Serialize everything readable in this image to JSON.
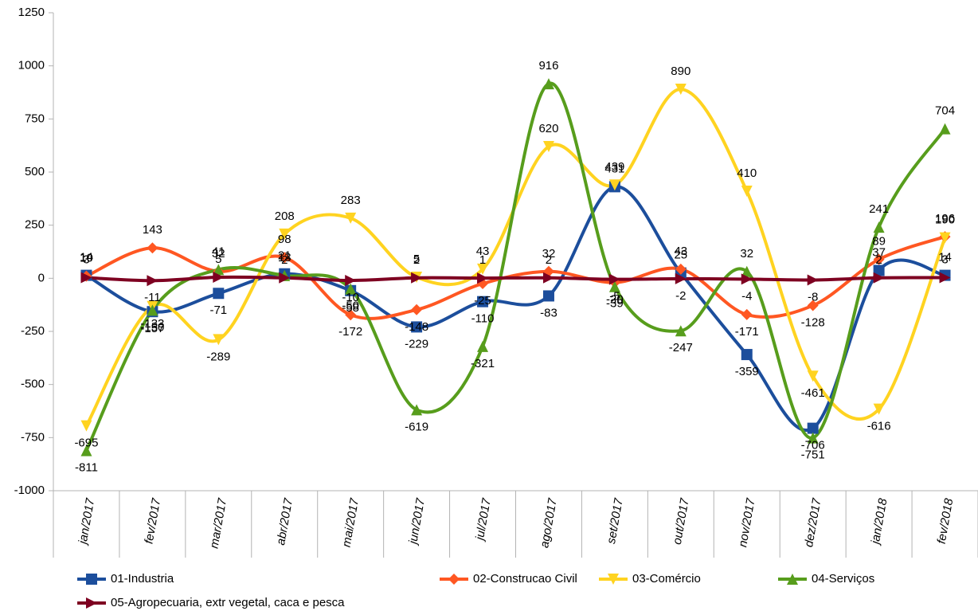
{
  "chart_data": {
    "type": "line",
    "smooth": true,
    "grid": false,
    "legend": "bottom",
    "categories": [
      "jan/2017",
      "fev/2017",
      "mar/2017",
      "abr/2017",
      "mai/2017",
      "jun/2017",
      "jul/2017",
      "ago/2017",
      "set/2017",
      "out/2017",
      "nov/2017",
      "dez/2017",
      "jan/2018",
      "fev/2018"
    ],
    "series": [
      {
        "name": "01-Industria",
        "color": "#1c4e9c",
        "marker": "square",
        "values": [
          14,
          -157,
          -71,
          21,
          -58,
          -229,
          -110,
          -83,
          431,
          25,
          -359,
          -706,
          37,
          14
        ]
      },
      {
        "name": "02-Construcao Civil",
        "color": "#ff5722",
        "marker": "diamond",
        "values": [
          10,
          143,
          32,
          98,
          -172,
          -148,
          -25,
          32,
          -20,
          43,
          -171,
          -128,
          89,
          196
        ]
      },
      {
        "name": "03-Comércio",
        "color": "#ffd320",
        "marker": "triangle-down",
        "values": [
          -695,
          -133,
          -289,
          208,
          283,
          5,
          43,
          620,
          439,
          890,
          410,
          -461,
          -616,
          190
        ]
      },
      {
        "name": "04-Serviços",
        "color": "#579d1c",
        "marker": "triangle-up",
        "values": [
          -811,
          -150,
          41,
          13,
          -50,
          -619,
          -321,
          916,
          -39,
          -247,
          32,
          -751,
          241,
          704
        ]
      },
      {
        "name": "05-Agropecuaria, extr vegetal, caca e pesca",
        "color": "#7e0021",
        "marker": "triangle-right",
        "values": [
          3,
          -11,
          5,
          2,
          -10,
          2,
          1,
          2,
          -5,
          -2,
          -4,
          -8,
          2,
          3
        ]
      }
    ],
    "ylim": [
      -1000,
      1250
    ],
    "yticks": [
      -1000,
      -750,
      -500,
      -250,
      0,
      250,
      500,
      750,
      1000,
      1250
    ]
  }
}
